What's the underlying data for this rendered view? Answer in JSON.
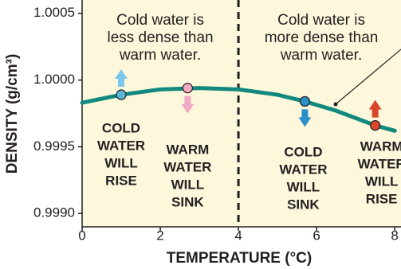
{
  "chart_data": {
    "type": "line",
    "xlabel": "TEMPERATURE (°C)",
    "ylabel": "DENSITY (g/cm³)",
    "xlim": [
      0,
      8.16
    ],
    "ylim": [
      0.9989,
      1.0006
    ],
    "xticks": [
      0,
      2,
      4,
      6,
      8
    ],
    "yticks": [
      {
        "value": 0.999,
        "label": "0.9990"
      },
      {
        "value": 0.9995,
        "label": "0.9995"
      },
      {
        "value": 1.0,
        "label": "1.0000"
      },
      {
        "value": 1.0005,
        "label": "1.0005"
      }
    ],
    "divider_x": 4,
    "background": "#fdf8dc",
    "series": [
      {
        "color": "#12897e",
        "x": [
          0,
          1,
          2,
          3,
          4,
          5,
          5.7,
          6.5,
          7.5,
          8
        ],
        "values": [
          0.99983,
          0.99989,
          0.99993,
          0.99994,
          0.99993,
          0.99989,
          0.99984,
          0.99977,
          0.99966,
          0.99962
        ]
      }
    ],
    "points": [
      {
        "x": 1,
        "y": 0.99989,
        "color": "#5bb3d9",
        "arrow": "up",
        "arrow_color": "#7cc8ec",
        "label": [
          "COLD",
          "WATER",
          "WILL",
          "RISE"
        ]
      },
      {
        "x": 2.7,
        "y": 0.99994,
        "color": "#f5a9c4",
        "arrow": "down",
        "arrow_color": "#f2a8c6",
        "label": [
          "WARM",
          "WATER",
          "WILL",
          "SINK"
        ]
      },
      {
        "x": 5.7,
        "y": 0.99984,
        "color": "#2a8fc7",
        "arrow": "down",
        "arrow_color": "#2a8fc7",
        "label": [
          "COLD",
          "WATER",
          "WILL",
          "SINK"
        ]
      },
      {
        "x": 7.5,
        "y": 0.99966,
        "color": "#d9472b",
        "arrow": "up",
        "arrow_color": "#d9472b",
        "label": [
          "WARM",
          "WATER",
          "WILL",
          "RISE"
        ]
      }
    ],
    "annotations": [
      [
        "Cold water is",
        "less dense than",
        "warm water."
      ],
      [
        "Cold water is",
        "more dense than",
        "warm water."
      ]
    ]
  }
}
